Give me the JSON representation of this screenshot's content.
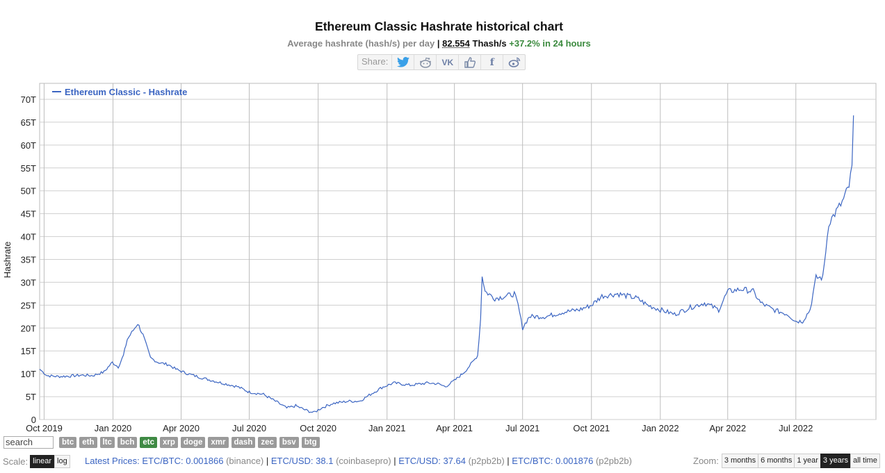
{
  "header": {
    "title": "Ethereum Classic Hashrate historical chart",
    "subtitle_label": "Average hashrate (hash/s) per day",
    "subtitle_sep": "|",
    "current_value": "82.554",
    "current_unit": "Thash/s",
    "change": "+37.2% in 24 hours"
  },
  "share": {
    "label": "Share:",
    "buttons": [
      {
        "name": "twitter-icon",
        "glyph": "🐦"
      },
      {
        "name": "reddit-icon",
        "glyph": "☺"
      },
      {
        "name": "vk-icon",
        "glyph": "VK"
      },
      {
        "name": "like-icon",
        "glyph": "👍"
      },
      {
        "name": "facebook-icon",
        "glyph": "f"
      },
      {
        "name": "weibo-icon",
        "glyph": "◎"
      }
    ]
  },
  "chart_data": {
    "type": "line",
    "ylabel": "Hashrate",
    "ylim": [
      0,
      70
    ],
    "y_ticks": [
      0,
      5,
      10,
      15,
      20,
      25,
      30,
      35,
      40,
      45,
      50,
      55,
      60,
      65,
      70
    ],
    "y_tick_labels": [
      "0",
      "5T",
      "10T",
      "15T",
      "20T",
      "25T",
      "30T",
      "35T",
      "40T",
      "45T",
      "50T",
      "55T",
      "60T",
      "65T",
      "70T"
    ],
    "xlim": [
      "2019-09-25",
      "2022-10-16"
    ],
    "x_ticks": [
      "2019-10-01",
      "2020-01-01",
      "2020-04-01",
      "2020-07-01",
      "2020-10-01",
      "2021-01-01",
      "2021-04-01",
      "2021-07-01",
      "2021-10-01",
      "2022-01-01",
      "2022-04-01",
      "2022-07-01"
    ],
    "x_tick_labels": [
      "Oct 2019",
      "Jan 2020",
      "Apr 2020",
      "Jul 2020",
      "Oct 2020",
      "Jan 2021",
      "Apr 2021",
      "Jul 2021",
      "Oct 2021",
      "Jan 2022",
      "Apr 2022",
      "Jul 2022"
    ],
    "grid": true,
    "legend_position": "top-left",
    "series": [
      {
        "name": "Ethereum Classic - Hashrate",
        "color": "#3b65c2",
        "points": [
          [
            "2019-09-25",
            11.0
          ],
          [
            "2019-10-05",
            9.6
          ],
          [
            "2019-10-20",
            9.4
          ],
          [
            "2019-11-05",
            9.5
          ],
          [
            "2019-11-20",
            9.7
          ],
          [
            "2019-12-05",
            9.6
          ],
          [
            "2019-12-20",
            10.4
          ],
          [
            "2019-12-31",
            12.5
          ],
          [
            "2020-01-08",
            11.5
          ],
          [
            "2020-01-15",
            14.0
          ],
          [
            "2020-01-20",
            17.5
          ],
          [
            "2020-01-28",
            19.5
          ],
          [
            "2020-02-03",
            21.0
          ],
          [
            "2020-02-10",
            18.5
          ],
          [
            "2020-02-20",
            13.5
          ],
          [
            "2020-03-01",
            12.5
          ],
          [
            "2020-03-15",
            12.0
          ],
          [
            "2020-03-25",
            11.0
          ],
          [
            "2020-04-10",
            10.0
          ],
          [
            "2020-05-01",
            9.0
          ],
          [
            "2020-05-25",
            8.0
          ],
          [
            "2020-06-15",
            7.2
          ],
          [
            "2020-07-01",
            6.0
          ],
          [
            "2020-07-20",
            5.5
          ],
          [
            "2020-08-05",
            4.0
          ],
          [
            "2020-08-20",
            2.5
          ],
          [
            "2020-09-01",
            3.0
          ],
          [
            "2020-09-15",
            2.0
          ],
          [
            "2020-09-25",
            1.5
          ],
          [
            "2020-10-05",
            2.5
          ],
          [
            "2020-10-20",
            3.5
          ],
          [
            "2020-11-10",
            4.0
          ],
          [
            "2020-11-25",
            4.0
          ],
          [
            "2020-12-10",
            5.5
          ],
          [
            "2020-12-25",
            7.0
          ],
          [
            "2021-01-10",
            8.0
          ],
          [
            "2021-02-01",
            7.5
          ],
          [
            "2021-02-25",
            8.0
          ],
          [
            "2021-03-10",
            7.8
          ],
          [
            "2021-03-20",
            7.2
          ],
          [
            "2021-04-01",
            8.5
          ],
          [
            "2021-04-15",
            10.5
          ],
          [
            "2021-04-25",
            12.5
          ],
          [
            "2021-05-02",
            14.0
          ],
          [
            "2021-05-06",
            22.0
          ],
          [
            "2021-05-08",
            31.5
          ],
          [
            "2021-05-12",
            28.0
          ],
          [
            "2021-05-25",
            26.5
          ],
          [
            "2021-06-10",
            27.0
          ],
          [
            "2021-06-20",
            27.5
          ],
          [
            "2021-06-25",
            25.0
          ],
          [
            "2021-07-01",
            20.0
          ],
          [
            "2021-07-10",
            22.5
          ],
          [
            "2021-08-01",
            22.5
          ],
          [
            "2021-08-25",
            23.5
          ],
          [
            "2021-09-15",
            24.0
          ],
          [
            "2021-10-01",
            25.0
          ],
          [
            "2021-10-15",
            27.0
          ],
          [
            "2021-11-05",
            27.5
          ],
          [
            "2021-12-01",
            26.5
          ],
          [
            "2021-12-15",
            25.0
          ],
          [
            "2022-01-01",
            24.0
          ],
          [
            "2022-01-20",
            23.0
          ],
          [
            "2022-02-10",
            24.5
          ],
          [
            "2022-03-01",
            25.5
          ],
          [
            "2022-03-20",
            24.0
          ],
          [
            "2022-04-01",
            28.0
          ],
          [
            "2022-04-20",
            28.5
          ],
          [
            "2022-05-05",
            28.0
          ],
          [
            "2022-05-15",
            25.5
          ],
          [
            "2022-06-01",
            24.0
          ],
          [
            "2022-06-20",
            23.0
          ],
          [
            "2022-07-01",
            21.5
          ],
          [
            "2022-07-10",
            21.5
          ],
          [
            "2022-07-20",
            24.0
          ],
          [
            "2022-07-28",
            31.0
          ],
          [
            "2022-08-06",
            31.0
          ],
          [
            "2022-08-14",
            43.0
          ],
          [
            "2022-08-22",
            45.0
          ],
          [
            "2022-09-01",
            47.5
          ],
          [
            "2022-09-10",
            51.0
          ],
          [
            "2022-09-14",
            55.0
          ],
          [
            "2022-09-16",
            66.5
          ]
        ]
      }
    ]
  },
  "coins": {
    "search_placeholder": "search",
    "items": [
      "btc",
      "eth",
      "ltc",
      "bch",
      "etc",
      "xrp",
      "doge",
      "xmr",
      "dash",
      "zec",
      "bsv",
      "btg"
    ],
    "active": "etc"
  },
  "scale": {
    "label": "Scale:",
    "options": [
      "linear",
      "log"
    ],
    "active": "linear"
  },
  "prices": {
    "label": "Latest Prices:",
    "items": [
      {
        "pair": "ETC/BTC:",
        "value": "0.001866",
        "source": "(binance)"
      },
      {
        "pair": "ETC/USD:",
        "value": "38.1",
        "source": "(coinbasepro)"
      },
      {
        "pair": "ETC/USD:",
        "value": "37.64",
        "source": "(p2pb2b)"
      },
      {
        "pair": "ETC/BTC:",
        "value": "0.001876",
        "source": "(p2pb2b)"
      }
    ]
  },
  "zoom": {
    "label": "Zoom:",
    "options": [
      "3 months",
      "6 months",
      "1 year",
      "3 years",
      "all time"
    ],
    "active": "3 years"
  }
}
